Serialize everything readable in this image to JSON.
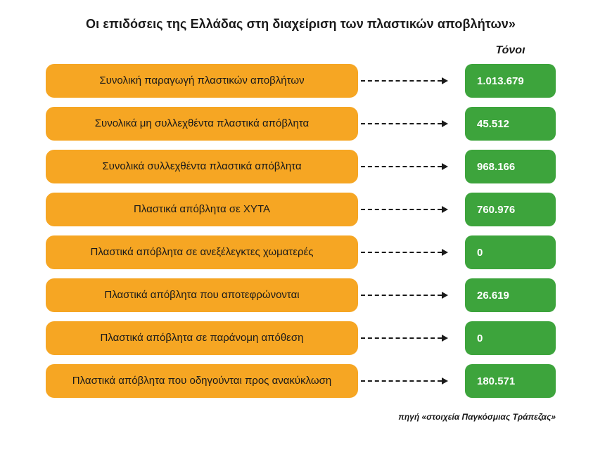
{
  "title": "Οι επιδόσεις της Ελλάδας στη διαχείριση των πλαστικών αποβλήτων»",
  "unit_header": "Τόνοι",
  "source": "πηγή «στοιχεία Παγκόσμιας Τράπεζας»",
  "colors": {
    "label_box": "#F6A623",
    "value_box": "#3DA43C",
    "label_text": "#1A1A1A",
    "value_text": "#FFFFFF",
    "arrow": "#1A1A1A"
  },
  "rows": [
    {
      "label": "Συνολική παραγωγή πλαστικών αποβλήτων",
      "value": "1.013.679"
    },
    {
      "label": "Συνολικά μη συλλεχθέντα πλαστικά απόβλητα",
      "value": "45.512"
    },
    {
      "label": "Συνολικά συλλεχθέντα πλαστικά απόβλητα",
      "value": "968.166"
    },
    {
      "label": "Πλαστικά απόβλητα σε ΧΥΤΑ",
      "value": "760.976"
    },
    {
      "label": "Πλαστικά απόβλητα σε ανεξέλεγκτες χωματερές",
      "value": "0"
    },
    {
      "label": "Πλαστικά απόβλητα που αποτεφρώνονται",
      "value": "26.619"
    },
    {
      "label": "Πλαστικά απόβλητα σε παράνομη απόθεση",
      "value": "0"
    },
    {
      "label": "Πλαστικά απόβλητα που οδηγούνται προς ανακύκλωση",
      "value": "180.571"
    }
  ],
  "chart_data": {
    "type": "table",
    "title": "Οι επιδόσεις της Ελλάδας στη διαχείριση των πλαστικών αποβλήτων»",
    "unit": "Τόνοι",
    "source": "πηγή «στοιχεία Παγκόσμιας Τράπεζας»",
    "categories": [
      "Συνολική παραγωγή πλαστικών αποβλήτων",
      "Συνολικά μη συλλεχθέντα πλαστικά απόβλητα",
      "Συνολικά συλλεχθέντα πλαστικά απόβλητα",
      "Πλαστικά απόβλητα σε ΧΥΤΑ",
      "Πλαστικά απόβλητα σε ανεξέλεγκτες χωματερές",
      "Πλαστικά απόβλητα που αποτεφρώνονται",
      "Πλαστικά απόβλητα σε παράνομη απόθεση",
      "Πλαστικά απόβλητα που οδηγούνται προς ανακύκλωση"
    ],
    "values": [
      1013679,
      45512,
      968166,
      760976,
      0,
      26619,
      0,
      180571
    ]
  }
}
